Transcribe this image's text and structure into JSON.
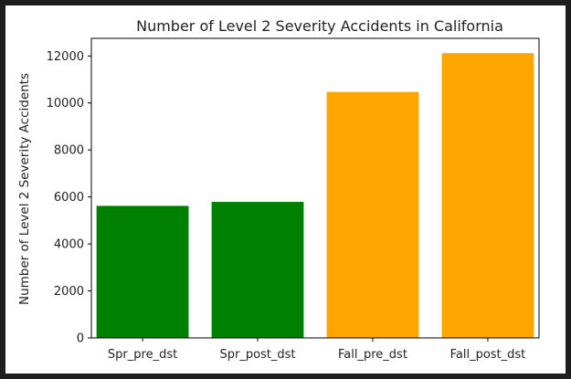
{
  "chart_data": {
    "type": "bar",
    "title": "Number of Level 2 Severity Accidents in California",
    "xlabel": "",
    "ylabel": "Number of Level 2 Severity Accidents",
    "categories": [
      "Spr_pre_dst",
      "Spr_post_dst",
      "Fall_pre_dst",
      "Fall_post_dst"
    ],
    "values": [
      5620,
      5790,
      10470,
      12120
    ],
    "bar_colors": [
      "#008000",
      "#008000",
      "#ffa500",
      "#ffa500"
    ],
    "ylim": [
      0,
      12750
    ],
    "yticks": [
      0,
      2000,
      4000,
      6000,
      8000,
      10000,
      12000
    ],
    "grid": false,
    "legend": "none"
  }
}
